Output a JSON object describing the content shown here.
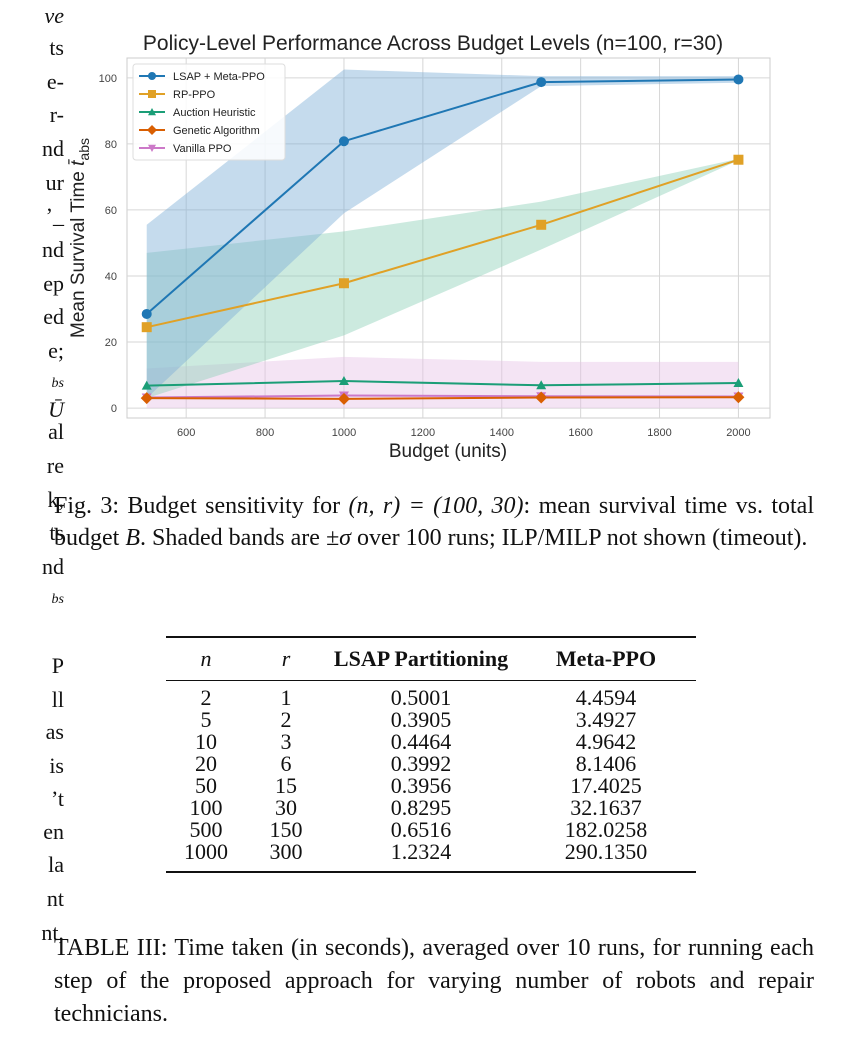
{
  "left_column_fragments": [
    "ve",
    "ts",
    "e-",
    "r-",
    "nd",
    "ur",
    "’_",
    "nd",
    "ep",
    "ed",
    "e;",
    "bs",
    "Ū",
    "al",
    "re",
    "k,",
    "ts",
    "nd",
    "bs",
    "",
    "P",
    "ll",
    "as",
    "is",
    "’t",
    "en",
    "la",
    "nt",
    "nt,"
  ],
  "chart_data": {
    "type": "line",
    "title": "Policy-Level Performance Across Budget Levels (n=100, r=30)",
    "xlabel": "Budget (units)",
    "ylabel": "Mean Survival Time t̄abs",
    "ylabel_main": "Mean Survival Time ",
    "ylabel_symbol": "t̄",
    "ylabel_sub": "abs",
    "x": [
      500,
      1000,
      1500,
      2000
    ],
    "xlim": [
      450,
      2080
    ],
    "ylim": [
      -3,
      106
    ],
    "xticks": [
      600,
      800,
      1000,
      1200,
      1400,
      1600,
      1800,
      2000
    ],
    "yticks": [
      0,
      20,
      40,
      60,
      80,
      100
    ],
    "grid": true,
    "legend_position": "top-left",
    "series": [
      {
        "name": "LSAP + Meta-PPO",
        "color": "#1f77b4",
        "marker": "circle",
        "values": [
          28.5,
          80.8,
          98.7,
          99.5
        ],
        "band_lower": [
          3.0,
          59.0,
          97.5,
          98.5
        ],
        "band_upper": [
          55.5,
          102.5,
          100.5,
          100.5
        ],
        "band_color": "#7fb0d6"
      },
      {
        "name": "RP-PPO",
        "color": "#e0a126",
        "marker": "square",
        "values": [
          24.5,
          37.8,
          55.5,
          75.2
        ],
        "band_lower": [
          3.0,
          22.0,
          48.0,
          75.0
        ],
        "band_upper": [
          47.0,
          53.5,
          62.5,
          75.5
        ],
        "band_color": "#8fd1b8"
      },
      {
        "name": "Auction Heuristic",
        "color": "#1b9e77",
        "marker": "triangle-up",
        "values": [
          6.8,
          8.2,
          6.9,
          7.6
        ]
      },
      {
        "name": "Genetic Algorithm",
        "color": "#d95f02",
        "marker": "diamond",
        "values": [
          3.0,
          2.8,
          3.2,
          3.3
        ]
      },
      {
        "name": "Vanilla PPO",
        "color": "#cc79c8",
        "marker": "triangle-down",
        "values": [
          3.2,
          3.8,
          3.6,
          3.5
        ],
        "band_lower": [
          0.0,
          0.0,
          0.0,
          0.0
        ],
        "band_upper": [
          12.0,
          15.5,
          14.0,
          14.0
        ],
        "band_color": "#e6c3e6"
      }
    ]
  },
  "figure_caption": {
    "prefix": "Fig. 3: Budget sensitivity for ",
    "math1": "(n, r) = (100, 30)",
    "mid1": ": mean survival time vs. total budget ",
    "math2": "B",
    "mid2": ". Shaded bands are ",
    "math3": "±σ",
    "suffix": " over 100 runs; ILP/MILP not shown (timeout)."
  },
  "table": {
    "headers": [
      "n",
      "r",
      "LSAP Partitioning",
      "Meta-PPO"
    ],
    "rows": [
      [
        "2",
        "1",
        "0.5001",
        "4.4594"
      ],
      [
        "5",
        "2",
        "0.3905",
        "3.4927"
      ],
      [
        "10",
        "3",
        "0.4464",
        "4.9642"
      ],
      [
        "20",
        "6",
        "0.3992",
        "8.1406"
      ],
      [
        "50",
        "15",
        "0.3956",
        "17.4025"
      ],
      [
        "100",
        "30",
        "0.8295",
        "32.1637"
      ],
      [
        "500",
        "150",
        "0.6516",
        "182.0258"
      ],
      [
        "1000",
        "300",
        "1.2324",
        "290.1350"
      ]
    ]
  },
  "table_caption": "TABLE III: Time taken (in seconds), averaged over 10 runs, for running each step of the proposed approach for varying number of robots and repair technicians."
}
